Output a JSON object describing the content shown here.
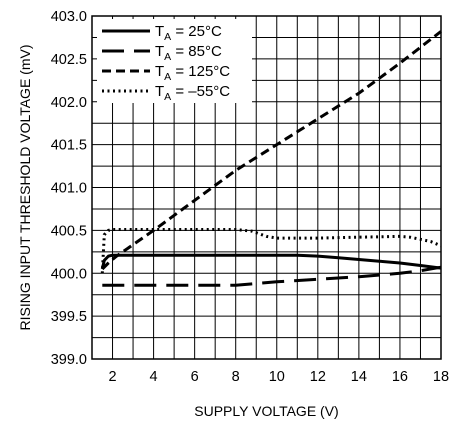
{
  "chart_data": {
    "type": "line",
    "title": "",
    "xlabel": "SUPPLY VOLTAGE (V)",
    "ylabel": "RISING INPUT THRESHOLD VOLTAGE (mV)",
    "xlim": [
      1,
      18
    ],
    "ylim": [
      399.0,
      403.0
    ],
    "xticks": [
      2,
      4,
      6,
      8,
      10,
      12,
      14,
      16,
      18
    ],
    "yticks": [
      "399.0",
      "399.5",
      "400.0",
      "400.5",
      "401.0",
      "401.5",
      "402.0",
      "402.5",
      "403.0"
    ],
    "grid": true,
    "legend_position": "top-left",
    "series": [
      {
        "name": "T",
        "subscript": "A",
        "suffix": " = 25°C",
        "dash": "solid",
        "x": [
          1.5,
          1.6,
          1.8,
          2.0,
          4,
          6,
          8,
          10,
          11,
          12,
          13,
          14,
          15,
          16,
          17,
          18
        ],
        "y": [
          400.05,
          400.15,
          400.2,
          400.21,
          400.21,
          400.21,
          400.21,
          400.21,
          400.21,
          400.2,
          400.18,
          400.16,
          400.14,
          400.12,
          400.09,
          400.06
        ]
      },
      {
        "name": "T",
        "subscript": "A",
        "suffix": " = 85°C",
        "dash": "long",
        "x": [
          1.5,
          4,
          6,
          8,
          10,
          12,
          14,
          16,
          17,
          18
        ],
        "y": [
          399.86,
          399.86,
          399.86,
          399.86,
          399.9,
          399.93,
          399.96,
          400.0,
          400.03,
          400.07
        ]
      },
      {
        "name": "T",
        "subscript": "A",
        "suffix": " = 125°C",
        "dash": "short",
        "x": [
          1.5,
          1.8,
          2.2,
          4,
          6,
          8,
          10,
          12,
          14,
          16,
          18
        ],
        "y": [
          400.05,
          400.12,
          400.2,
          400.5,
          400.85,
          401.2,
          401.5,
          401.8,
          402.1,
          402.45,
          402.82
        ]
      },
      {
        "name": "T",
        "subscript": "A",
        "suffix": " = –55°C",
        "dash": "dot",
        "x": [
          1.5,
          1.6,
          1.8,
          2.0,
          4,
          6,
          8,
          8.8,
          9.5,
          10,
          12,
          14,
          16,
          16.5,
          17.5,
          18
        ],
        "y": [
          400.0,
          400.45,
          400.5,
          400.51,
          400.51,
          400.51,
          400.51,
          400.49,
          400.43,
          400.41,
          400.41,
          400.42,
          400.43,
          400.42,
          400.37,
          400.32
        ]
      }
    ]
  }
}
